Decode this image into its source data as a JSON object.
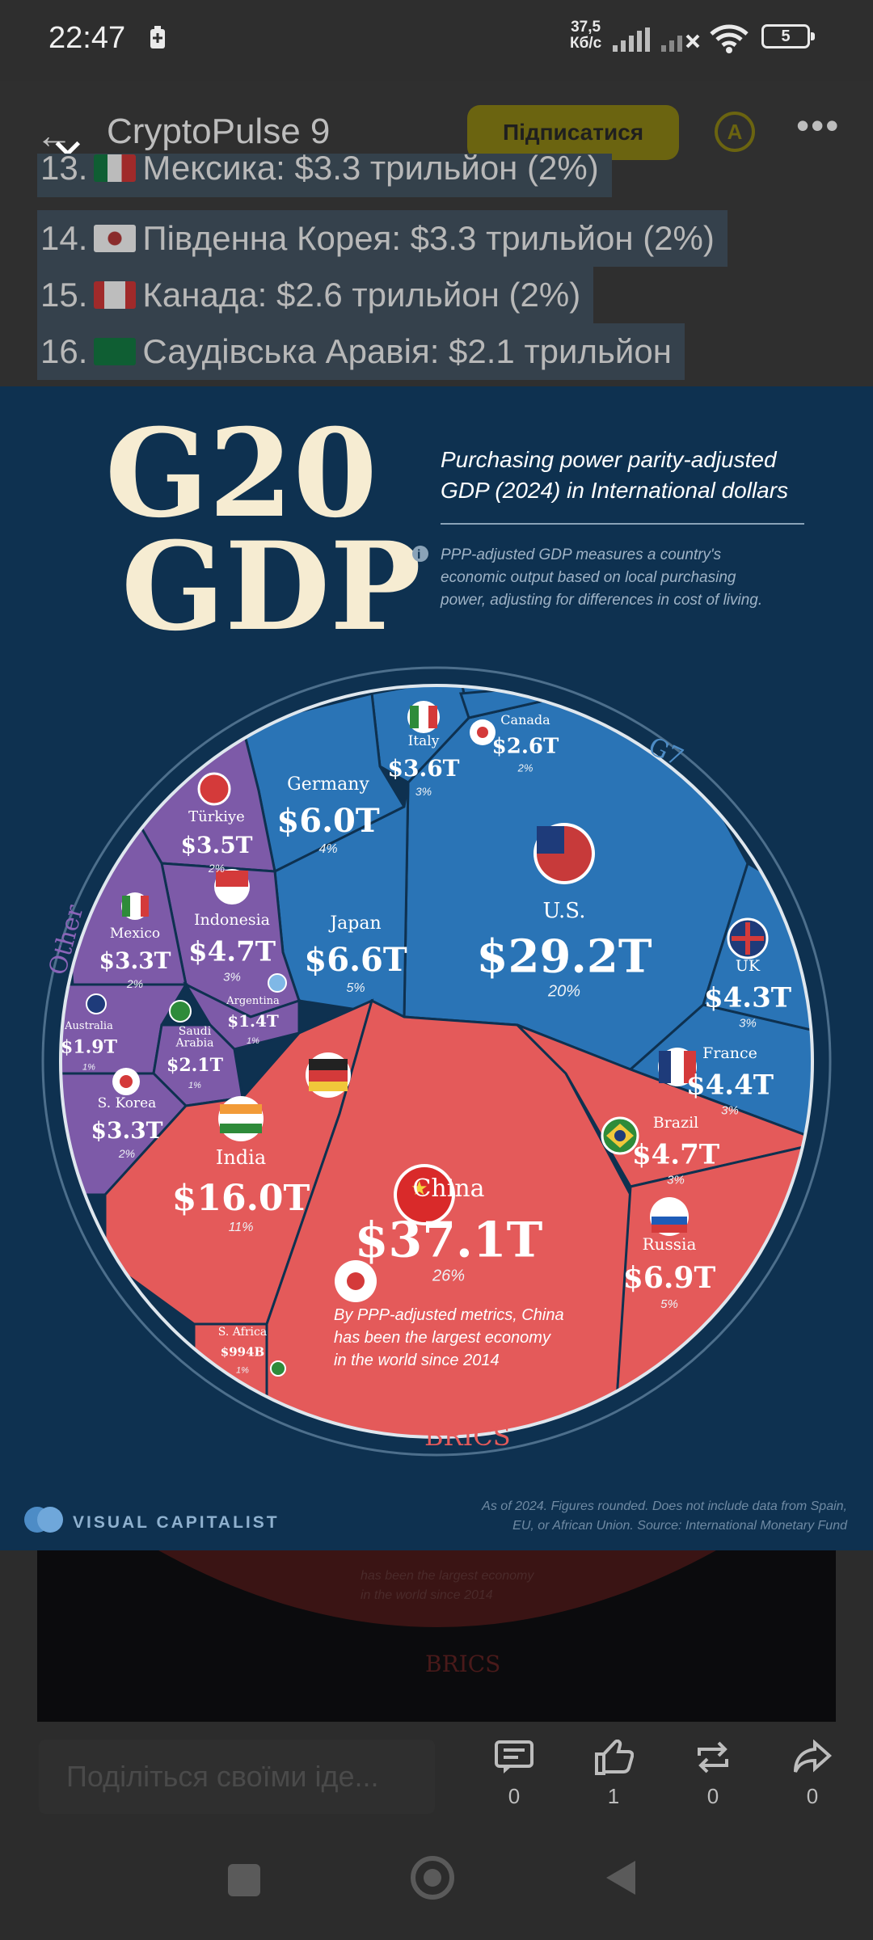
{
  "status_bar": {
    "time": "22:47",
    "net_speed_value": "37,5",
    "net_speed_unit": "Кб/с",
    "battery": "5"
  },
  "app_bar": {
    "channel_title": "CryptoPulse 9",
    "subscribe_label": "Підписатися"
  },
  "article_list": [
    {
      "rank": "13.",
      "text": "Мексика: $3.3 трильйон (2%)"
    },
    {
      "rank": "14.",
      "text": "Південна Корея: $3.3 трильйон (2%)"
    },
    {
      "rank": "15.",
      "text": "Канада: $2.6 трильйон (2%)"
    },
    {
      "rank": "16.",
      "text": "Саудівська Аравія: $2.1 трильйон"
    }
  ],
  "infographic": {
    "title_line1": "G20",
    "title_line2": "GDP",
    "subtitle_line1": "Purchasing power parity-adjusted",
    "subtitle_line2": "GDP (2024) in International dollars",
    "info_line1": "PPP-adjusted GDP measures a country's",
    "info_line2": "economic output based on local purchasing",
    "info_line3": "power, adjusting for differences in cost of living.",
    "group_g7": "G7",
    "group_other": "Other",
    "group_brics": "BRICS",
    "china_note_line1": "By PPP-adjusted metrics, China",
    "china_note_line2": "has been the largest economy",
    "china_note_line3": "in the world since 2014",
    "brand": "VISUAL CAPITALIST",
    "footnote_line1": "As of 2024. Figures rounded. Does not include data from Spain,",
    "footnote_line2": "EU, or African Union. Source: International Monetary Fund",
    "colors": {
      "background": "#0e3150",
      "g7": "#2a74b6",
      "brics": "#e45a5a",
      "other": "#7d5aa8",
      "title": "#f6ecd2"
    }
  },
  "chart_data": {
    "type": "voronoi-treemap",
    "unit": "International dollars (PPP, 2024)",
    "groups": [
      {
        "name": "G7",
        "countries": [
          {
            "country": "U.S.",
            "value": "$29.2T",
            "share": "20%"
          },
          {
            "country": "Japan",
            "value": "$6.6T",
            "share": "5%"
          },
          {
            "country": "Germany",
            "value": "$6.0T",
            "share": "4%"
          },
          {
            "country": "France",
            "value": "$4.4T",
            "share": "3%"
          },
          {
            "country": "UK",
            "value": "$4.3T",
            "share": "3%"
          },
          {
            "country": "Italy",
            "value": "$3.6T",
            "share": "3%"
          },
          {
            "country": "Canada",
            "value": "$2.6T",
            "share": "2%"
          }
        ]
      },
      {
        "name": "BRICS",
        "countries": [
          {
            "country": "China",
            "value": "$37.1T",
            "share": "26%"
          },
          {
            "country": "India",
            "value": "$16.0T",
            "share": "11%"
          },
          {
            "country": "Russia",
            "value": "$6.9T",
            "share": "5%"
          },
          {
            "country": "Brazil",
            "value": "$4.7T",
            "share": "3%"
          },
          {
            "country": "S. Africa",
            "value": "$994B",
            "share": "1%"
          }
        ]
      },
      {
        "name": "Other",
        "countries": [
          {
            "country": "Indonesia",
            "value": "$4.7T",
            "share": "3%"
          },
          {
            "country": "Türkiye",
            "value": "$3.5T",
            "share": "2%"
          },
          {
            "country": "Mexico",
            "value": "$3.3T",
            "share": "2%"
          },
          {
            "country": "S. Korea",
            "value": "$3.3T",
            "share": "2%"
          },
          {
            "country": "Saudi Arabia",
            "value": "$2.1T",
            "share": "1%"
          },
          {
            "country": "Australia",
            "value": "$1.9T",
            "share": "1%"
          },
          {
            "country": "Argentina",
            "value": "$1.4T",
            "share": "1%"
          }
        ]
      }
    ]
  },
  "background_text": {
    "bg_note_line1": "has been the largest economy",
    "bg_note_line2": "in the world since 2014",
    "bg_brics": "BRICS"
  },
  "actions": {
    "comment_placeholder": "Поділіться своїми іде...",
    "comments": "0",
    "likes": "1",
    "reposts": "0",
    "shares": "0"
  }
}
